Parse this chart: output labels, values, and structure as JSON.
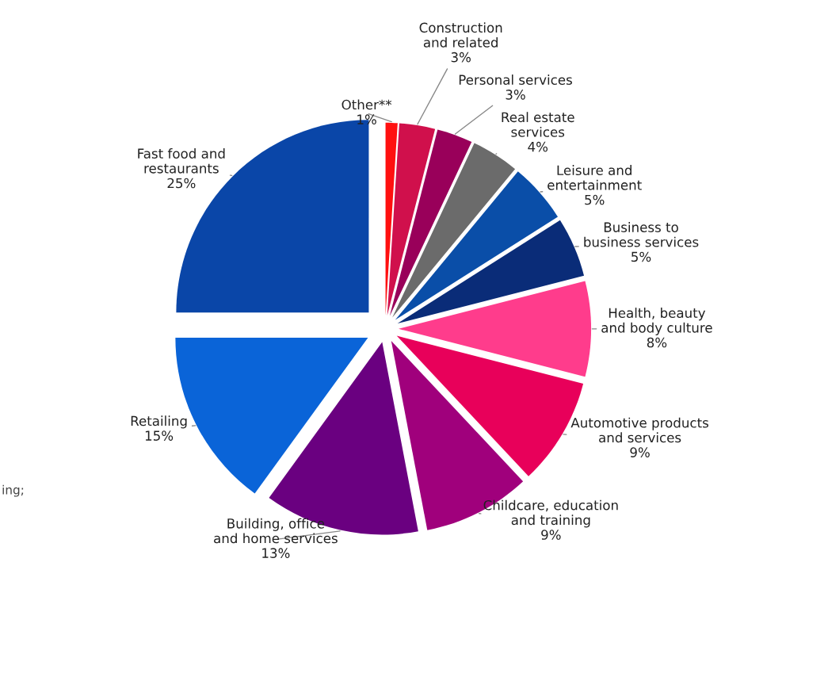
{
  "chart_data": {
    "type": "pie",
    "categories": [
      "Other**",
      "Construction and related",
      "Personal services",
      "Real estate services",
      "Leisure and entertainment",
      "Business to business services",
      "Health, beauty and body culture",
      "Automotive products and services",
      "Childcare, education and training",
      "Building, office and home services",
      "Retailing",
      "Fast food and restaurants"
    ],
    "values": [
      1,
      3,
      3,
      4,
      5,
      5,
      8,
      9,
      9,
      13,
      15,
      25
    ],
    "value_labels": [
      "1%",
      "3%",
      "3%",
      "4%",
      "5%",
      "5%",
      "8%",
      "9%",
      "9%",
      "13%",
      "15%",
      "25%"
    ],
    "colors": [
      "#ff1010",
      "#d0104c",
      "#99005a",
      "#6b6b6b",
      "#0a4ea8",
      "#0a2c78",
      "#ff3c8c",
      "#e8005a",
      "#a0007c",
      "#6a0080",
      "#0a64d8",
      "#0a46a8"
    ],
    "annotations": [
      "ing;"
    ]
  }
}
